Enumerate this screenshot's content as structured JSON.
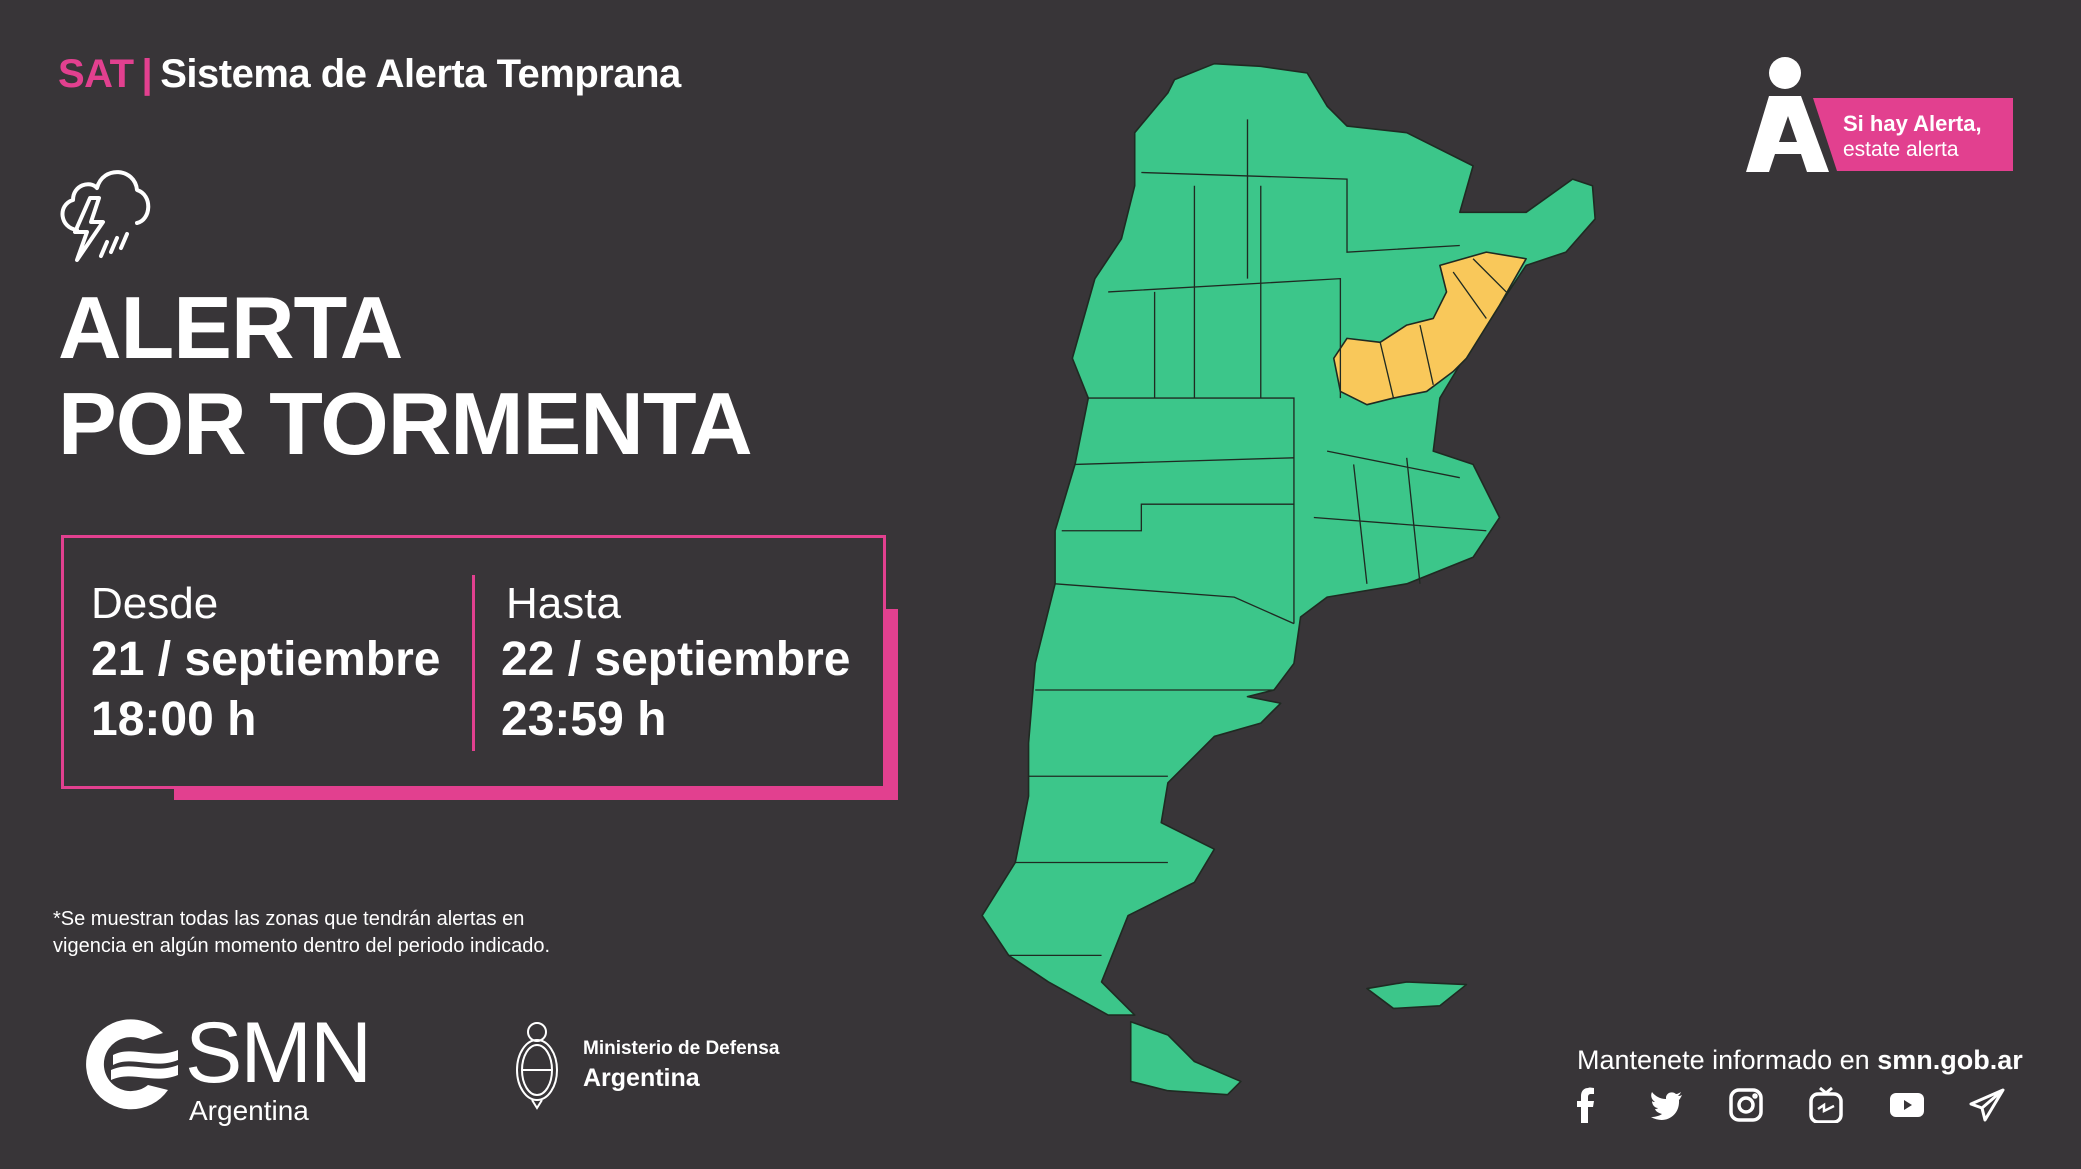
{
  "header": {
    "system_abbr": "SAT",
    "separator": "|",
    "system_name": "Sistema de Alerta Temprana"
  },
  "alert": {
    "icon": "storm-cloud-icon",
    "title_line1": "ALERTA",
    "title_line2": "POR TORMENTA"
  },
  "period": {
    "from_label": "Desde",
    "from_date": "21 / septiembre",
    "from_time": "18:00 h",
    "to_label": "Hasta",
    "to_date": "22 / septiembre",
    "to_time": "23:59 h"
  },
  "footnote": {
    "line1": "*Se muestran todas las zonas que tendrán alertas en",
    "line2": "vigencia en algún momento dentro del periodo indicado."
  },
  "logos": {
    "smn_name": "SMN",
    "smn_sub": "Argentina",
    "ministry_line1": "Ministerio de Defensa",
    "ministry_line2": "Argentina",
    "campaign_line1": "Si hay Alerta,",
    "campaign_line2": "estate alerta"
  },
  "contact": {
    "text": "Mantenete informado en",
    "site": "smn.gob.ar"
  },
  "social": [
    "facebook-icon",
    "twitter-icon",
    "instagram-icon",
    "igtv-icon",
    "youtube-icon",
    "telegram-icon"
  ],
  "map": {
    "legend_colors": {
      "no_alert": "#3cc68a",
      "yellow_alert": "#f9c85a"
    }
  },
  "colors": {
    "background": "#383538",
    "accent": "#e2408f"
  }
}
